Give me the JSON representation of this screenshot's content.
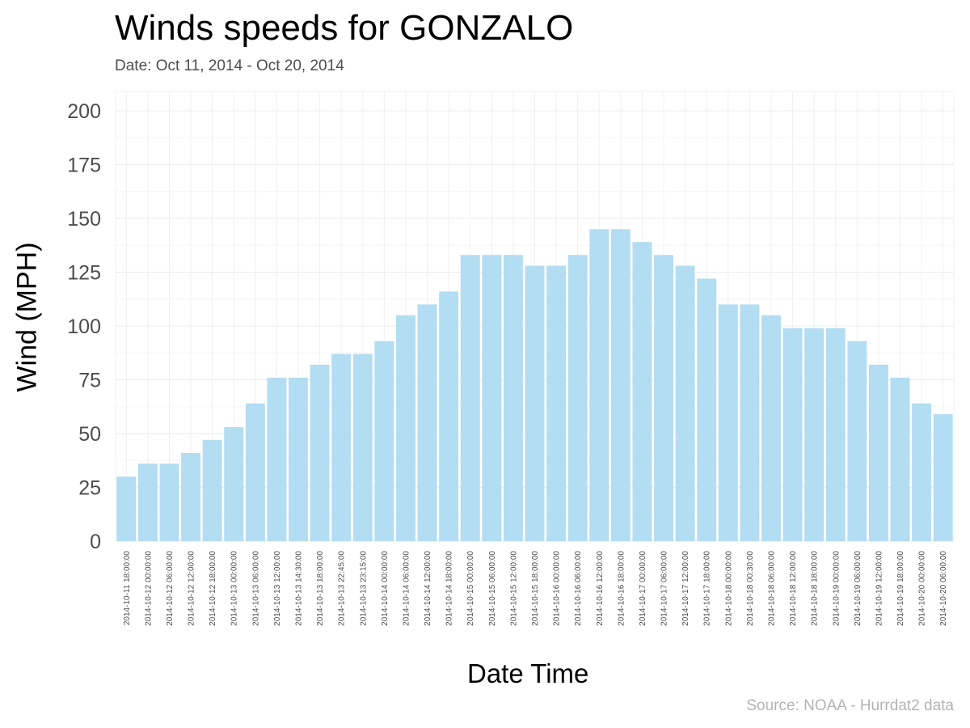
{
  "chart_data": {
    "type": "bar",
    "title": "Winds speeds for GONZALO",
    "subtitle": "Date:  Oct 11, 2014 - Oct 20, 2014",
    "xlabel": "Date Time",
    "ylabel": "Wind (MPH)",
    "caption": "Source: NOAA - Hurrdat2 data",
    "ylim": [
      0,
      200
    ],
    "yticks": [
      0,
      25,
      50,
      75,
      100,
      125,
      150,
      175,
      200
    ],
    "grid": true,
    "bar_color": "#b3ddf2",
    "categories": [
      "2014-10-11 18:00:00",
      "2014-10-12 00:00:00",
      "2014-10-12 06:00:00",
      "2014-10-12 12:00:00",
      "2014-10-12 18:00:00",
      "2014-10-13 00:00:00",
      "2014-10-13 06:00:00",
      "2014-10-13 12:00:00",
      "2014-10-13 14:30:00",
      "2014-10-13 18:00:00",
      "2014-10-13 22:45:00",
      "2014-10-13 23:15:00",
      "2014-10-14 00:00:00",
      "2014-10-14 06:00:00",
      "2014-10-14 12:00:00",
      "2014-10-14 18:00:00",
      "2014-10-15 00:00:00",
      "2014-10-15 06:00:00",
      "2014-10-15 12:00:00",
      "2014-10-15 18:00:00",
      "2014-10-16 00:00:00",
      "2014-10-16 06:00:00",
      "2014-10-16 12:00:00",
      "2014-10-16 18:00:00",
      "2014-10-17 00:00:00",
      "2014-10-17 06:00:00",
      "2014-10-17 12:00:00",
      "2014-10-17 18:00:00",
      "2014-10-18 00:00:00",
      "2014-10-18 00:30:00",
      "2014-10-18 06:00:00",
      "2014-10-18 12:00:00",
      "2014-10-18 18:00:00",
      "2014-10-19 00:00:00",
      "2014-10-19 06:00:00",
      "2014-10-19 12:00:00",
      "2014-10-19 18:00:00",
      "2014-10-20 00:00:00",
      "2014-10-20 06:00:00"
    ],
    "values": [
      30,
      36,
      36,
      41,
      47,
      53,
      64,
      76,
      76,
      82,
      87,
      87,
      93,
      105,
      110,
      116,
      133,
      133,
      133,
      128,
      128,
      133,
      145,
      145,
      139,
      133,
      128,
      122,
      110,
      110,
      105,
      99,
      99,
      99,
      93,
      82,
      76,
      64,
      59
    ]
  }
}
